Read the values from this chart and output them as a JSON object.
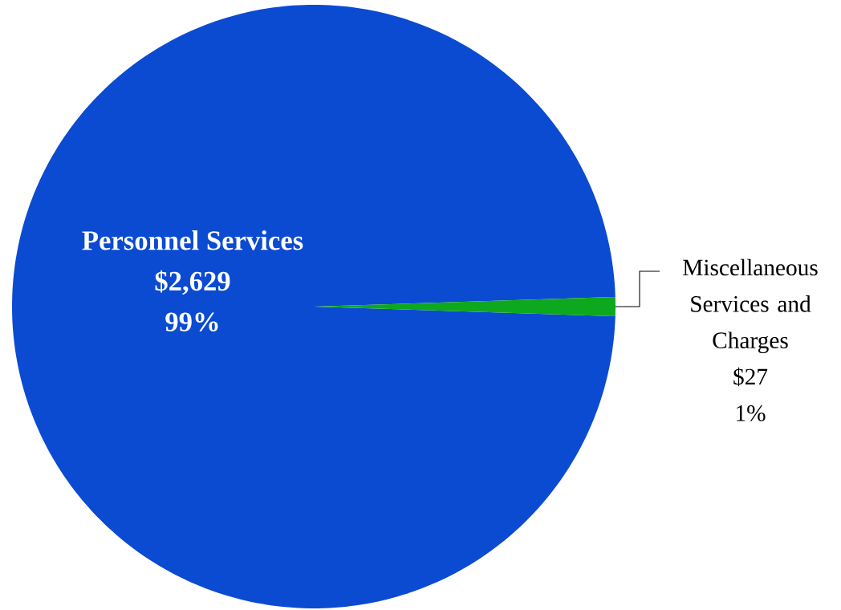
{
  "chart_data": {
    "type": "pie",
    "categories": [
      "Personnel Services",
      "Miscellaneous Services and Charges"
    ],
    "values": [
      2629,
      27
    ],
    "colors": [
      "#0b4bd2",
      "#0ea81e"
    ],
    "value_labels": [
      "$2,629",
      "$27"
    ],
    "annotations": [
      "99%",
      "1%"
    ]
  }
}
